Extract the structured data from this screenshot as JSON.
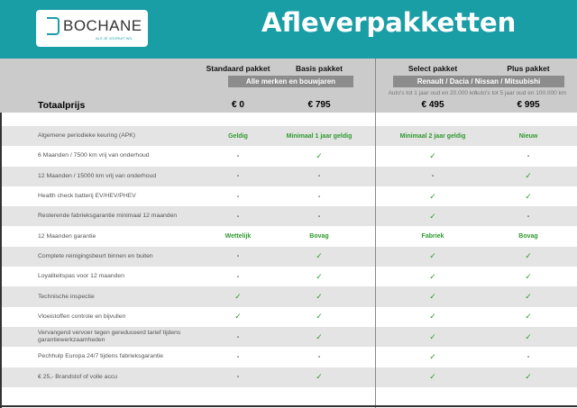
{
  "header": {
    "logo": "BOCHANE",
    "logo_tagline": "ALS JE VOORUIT WIL",
    "title": "Afleverpakketten"
  },
  "colors": {
    "brand": "#1a9ea6",
    "accent_green": "#2e9a2e"
  },
  "packages": [
    {
      "name": "Standaard pakket",
      "price": "€ 0"
    },
    {
      "name": "Basis pakket",
      "price": "€ 795"
    },
    {
      "name": "Select pakket",
      "price": "€ 495",
      "note": "Auto's tot 1 jaar oud en 20.000 km"
    },
    {
      "name": "Plus pakket",
      "price": "€ 995",
      "note": "Auto's tot 5 jaar oud en 100.000 km"
    }
  ],
  "groups": {
    "left": "Alle merken en bouwjaren",
    "right": "Renault / Dacia / Nissan / Mitsubishi"
  },
  "total_label": "Totaalprijs",
  "rows": [
    {
      "label": "Algemene periodieke keuring (APK)",
      "values": [
        "Geldig",
        "Minimaal 1 jaar geldig",
        "Minimaal 2 jaar geldig",
        "Nieuw"
      ]
    },
    {
      "label": "6 Maanden / 7500 km vrij van onderhoud",
      "values": [
        "-",
        "✓",
        "✓",
        "-"
      ]
    },
    {
      "label": "12 Maanden / 15000 km vrij van onderhoud",
      "values": [
        "-",
        "-",
        "-",
        "✓"
      ]
    },
    {
      "label": "Health check batterij EV/HEV/PHEV",
      "values": [
        "-",
        "-",
        "✓",
        "✓"
      ]
    },
    {
      "label": "Resterende fabrieksgarantie minimaal 12 maanden",
      "values": [
        "-",
        "-",
        "✓",
        "-"
      ]
    },
    {
      "label": "12 Maanden  garantie",
      "values": [
        "Wettelijk",
        "Bovag",
        "Fabriek",
        "Bovag"
      ]
    },
    {
      "label": "Complete reinigingsbeurt binnen en buiten",
      "values": [
        "-",
        "✓",
        "✓",
        "✓"
      ]
    },
    {
      "label": "Loyaliteitspas voor 12 maanden",
      "values": [
        "-",
        "✓",
        "✓",
        "✓"
      ]
    },
    {
      "label": "Technische inspectie",
      "values": [
        "✓",
        "✓",
        "✓",
        "✓"
      ]
    },
    {
      "label": "Vloeistoffen controle en bijvullen",
      "values": [
        "✓",
        "✓",
        "✓",
        "✓"
      ]
    },
    {
      "label": "Vervangend vervoer tegen gereduceerd tarief tijdens garantiewerkzaamheden",
      "values": [
        "-",
        "✓",
        "✓",
        "✓"
      ]
    },
    {
      "label": "Pechhulp Europa 24/7 tijdens fabrieksgarantie",
      "values": [
        "-",
        "-",
        "✓",
        "-"
      ]
    },
    {
      "label": "€ 25,- Brandstof of  volle accu",
      "values": [
        "-",
        "✓",
        "✓",
        "✓"
      ]
    }
  ]
}
